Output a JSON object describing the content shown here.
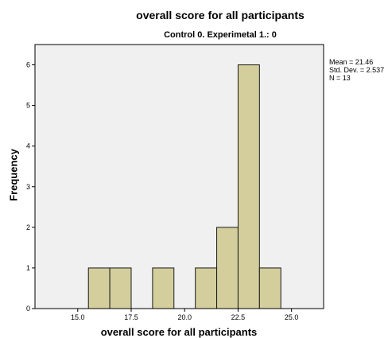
{
  "chart_data": {
    "type": "histogram",
    "title": "overall score for all participants",
    "subtitle": "Control 0. Experimetal 1.: 0",
    "xlabel": "overall score for all participants",
    "ylabel": "Frequency",
    "xlim": [
      13.0,
      26.5
    ],
    "ylim": [
      0,
      6.5
    ],
    "bin_width": 1.0,
    "bins": [
      {
        "start": 15.5,
        "end": 16.5,
        "count": 1
      },
      {
        "start": 16.5,
        "end": 17.5,
        "count": 1
      },
      {
        "start": 18.5,
        "end": 19.5,
        "count": 1
      },
      {
        "start": 20.5,
        "end": 21.5,
        "count": 1
      },
      {
        "start": 21.5,
        "end": 22.5,
        "count": 2
      },
      {
        "start": 22.5,
        "end": 23.5,
        "count": 6
      },
      {
        "start": 23.5,
        "end": 24.5,
        "count": 1
      }
    ],
    "x_ticks": [
      "15.0",
      "17.5",
      "20.0",
      "22.5",
      "25.0"
    ],
    "x_tick_values": [
      15.0,
      17.5,
      20.0,
      22.5,
      25.0
    ],
    "y_ticks": [
      "0",
      "1",
      "2",
      "3",
      "4",
      "5",
      "6"
    ],
    "y_tick_values": [
      0,
      1,
      2,
      3,
      4,
      5,
      6
    ],
    "grid": false,
    "legend": "none",
    "stats": {
      "mean": "Mean = 21.46",
      "std_dev": "Std. Dev. = 2.537",
      "n": "N = 13"
    },
    "colors": {
      "bar_fill": "#d3ce9b",
      "bar_stroke": "#1a1a1a",
      "plot_background": "#f0f0f0",
      "frame": "#000000"
    }
  }
}
